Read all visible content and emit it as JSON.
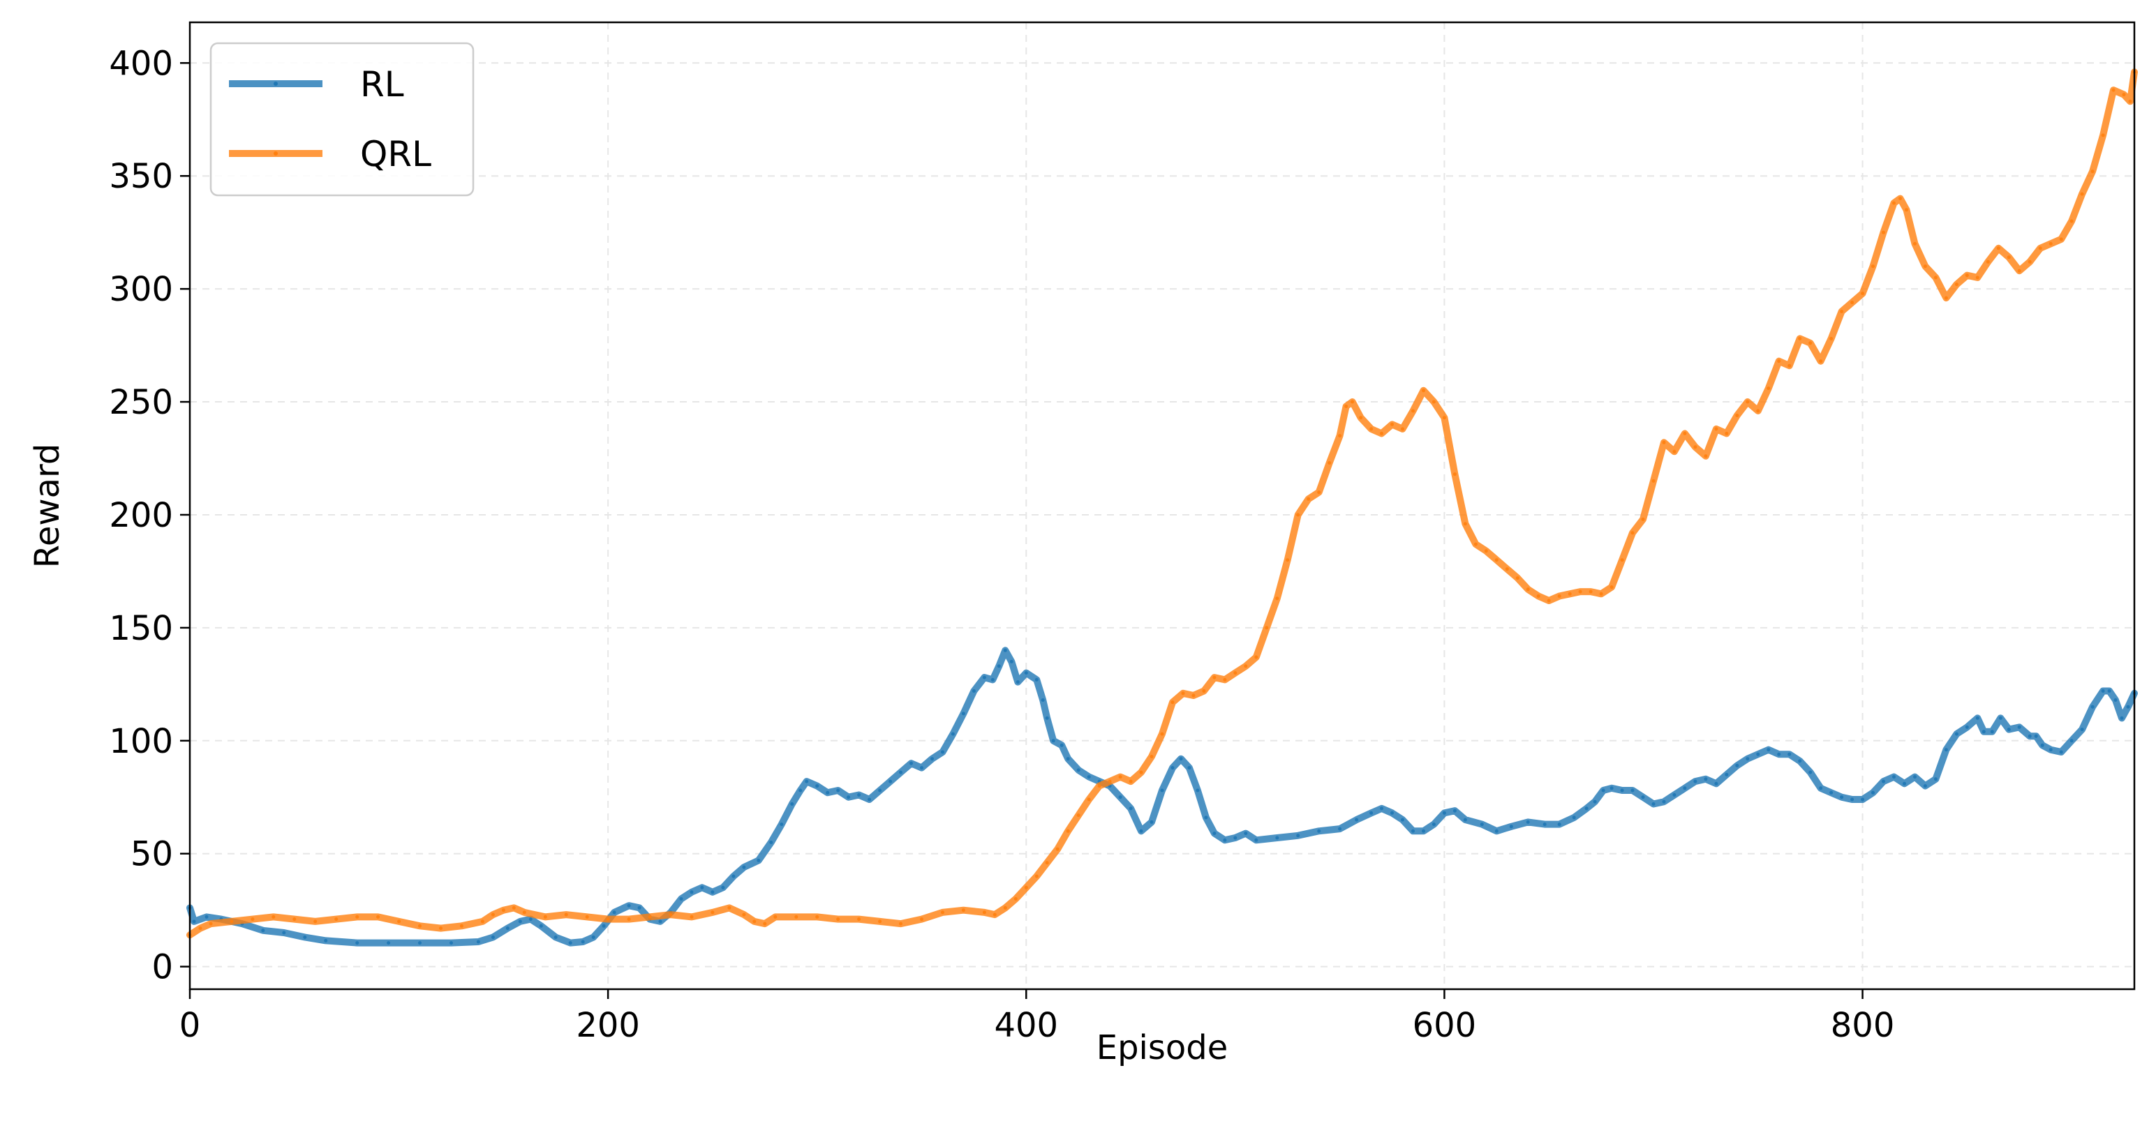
{
  "chart_data": {
    "type": "line",
    "title": "",
    "xlabel": "Episode",
    "ylabel": "Reward",
    "xlim": [
      0,
      930
    ],
    "ylim": [
      -10,
      418
    ],
    "xticks": [
      0,
      200,
      400,
      600,
      800
    ],
    "yticks": [
      0,
      50,
      100,
      150,
      200,
      250,
      300,
      350,
      400
    ],
    "grid": true,
    "legend_position": "top-left",
    "series": [
      {
        "name": "RL",
        "color": "#1f77b4",
        "points": [
          [
            0,
            26
          ],
          [
            2,
            20
          ],
          [
            8,
            22
          ],
          [
            15,
            21
          ],
          [
            25,
            19
          ],
          [
            35,
            16
          ],
          [
            45,
            15
          ],
          [
            55,
            13
          ],
          [
            65,
            11.5
          ],
          [
            80,
            10.5
          ],
          [
            95,
            10.5
          ],
          [
            110,
            10.5
          ],
          [
            125,
            10.5
          ],
          [
            138,
            11
          ],
          [
            145,
            13
          ],
          [
            152,
            17
          ],
          [
            158,
            20
          ],
          [
            163,
            21
          ],
          [
            168,
            18
          ],
          [
            175,
            13
          ],
          [
            182,
            10.5
          ],
          [
            188,
            11
          ],
          [
            193,
            13
          ],
          [
            198,
            18
          ],
          [
            203,
            24
          ],
          [
            210,
            27
          ],
          [
            215,
            26
          ],
          [
            220,
            21
          ],
          [
            225,
            20
          ],
          [
            230,
            24
          ],
          [
            235,
            30
          ],
          [
            240,
            33
          ],
          [
            245,
            35
          ],
          [
            250,
            33
          ],
          [
            255,
            35
          ],
          [
            260,
            40
          ],
          [
            265,
            44
          ],
          [
            272,
            47
          ],
          [
            278,
            55
          ],
          [
            283,
            63
          ],
          [
            288,
            72
          ],
          [
            292,
            78
          ],
          [
            295,
            82
          ],
          [
            300,
            80
          ],
          [
            305,
            77
          ],
          [
            310,
            78
          ],
          [
            315,
            75
          ],
          [
            320,
            76
          ],
          [
            325,
            74
          ],
          [
            330,
            78
          ],
          [
            335,
            82
          ],
          [
            340,
            86
          ],
          [
            345,
            90
          ],
          [
            350,
            88
          ],
          [
            355,
            92
          ],
          [
            360,
            95
          ],
          [
            365,
            103
          ],
          [
            370,
            112
          ],
          [
            375,
            122
          ],
          [
            380,
            128
          ],
          [
            384,
            127
          ],
          [
            387,
            133
          ],
          [
            390,
            140
          ],
          [
            393,
            135
          ],
          [
            396,
            126
          ],
          [
            400,
            130
          ],
          [
            405,
            127
          ],
          [
            408,
            118
          ],
          [
            410,
            110
          ],
          [
            413,
            100
          ],
          [
            417,
            98
          ],
          [
            420,
            92
          ],
          [
            425,
            87
          ],
          [
            430,
            84
          ],
          [
            435,
            82
          ],
          [
            440,
            80
          ],
          [
            445,
            75
          ],
          [
            450,
            70
          ],
          [
            455,
            60
          ],
          [
            460,
            64
          ],
          [
            465,
            78
          ],
          [
            470,
            88
          ],
          [
            474,
            92
          ],
          [
            478,
            88
          ],
          [
            482,
            78
          ],
          [
            486,
            66
          ],
          [
            490,
            59
          ],
          [
            495,
            56
          ],
          [
            500,
            57
          ],
          [
            505,
            59
          ],
          [
            510,
            56
          ],
          [
            520,
            57
          ],
          [
            530,
            58
          ],
          [
            540,
            60
          ],
          [
            550,
            61
          ],
          [
            558,
            65
          ],
          [
            565,
            68
          ],
          [
            570,
            70
          ],
          [
            575,
            68
          ],
          [
            580,
            65
          ],
          [
            585,
            60
          ],
          [
            590,
            60
          ],
          [
            595,
            63
          ],
          [
            600,
            68
          ],
          [
            605,
            69
          ],
          [
            610,
            65
          ],
          [
            618,
            63
          ],
          [
            625,
            60
          ],
          [
            632,
            62
          ],
          [
            640,
            64
          ],
          [
            648,
            63
          ],
          [
            655,
            63
          ],
          [
            662,
            66
          ],
          [
            668,
            70
          ],
          [
            672,
            73
          ],
          [
            676,
            78
          ],
          [
            680,
            79
          ],
          [
            685,
            78
          ],
          [
            690,
            78
          ],
          [
            695,
            75
          ],
          [
            700,
            72
          ],
          [
            705,
            73
          ],
          [
            710,
            76
          ],
          [
            715,
            79
          ],
          [
            720,
            82
          ],
          [
            725,
            83
          ],
          [
            730,
            81
          ],
          [
            735,
            85
          ],
          [
            740,
            89
          ],
          [
            745,
            92
          ],
          [
            750,
            94
          ],
          [
            755,
            96
          ],
          [
            760,
            94
          ],
          [
            765,
            94
          ],
          [
            770,
            91
          ],
          [
            775,
            86
          ],
          [
            780,
            79
          ],
          [
            785,
            77
          ],
          [
            790,
            75
          ],
          [
            795,
            74
          ],
          [
            800,
            74
          ],
          [
            805,
            77
          ],
          [
            810,
            82
          ],
          [
            815,
            84
          ],
          [
            820,
            81
          ],
          [
            825,
            84
          ],
          [
            830,
            80
          ],
          [
            835,
            83
          ],
          [
            840,
            96
          ],
          [
            845,
            103
          ],
          [
            850,
            106
          ],
          [
            855,
            110
          ],
          [
            858,
            104
          ],
          [
            862,
            104
          ],
          [
            866,
            110
          ],
          [
            870,
            105
          ],
          [
            875,
            106
          ],
          [
            880,
            102
          ],
          [
            883,
            102
          ],
          [
            886,
            98
          ],
          [
            890,
            96
          ],
          [
            895,
            95
          ],
          [
            900,
            100
          ],
          [
            905,
            105
          ],
          [
            910,
            115
          ],
          [
            915,
            122
          ],
          [
            918,
            122
          ],
          [
            921,
            118
          ],
          [
            924,
            110
          ],
          [
            927,
            115
          ],
          [
            930,
            121
          ]
        ]
      },
      {
        "name": "QRL",
        "color": "#ff7f0e",
        "points": [
          [
            0,
            14
          ],
          [
            5,
            17
          ],
          [
            10,
            19
          ],
          [
            20,
            20
          ],
          [
            30,
            21
          ],
          [
            40,
            22
          ],
          [
            50,
            21
          ],
          [
            60,
            20
          ],
          [
            70,
            21
          ],
          [
            80,
            22
          ],
          [
            90,
            22
          ],
          [
            100,
            20
          ],
          [
            110,
            18
          ],
          [
            120,
            17
          ],
          [
            130,
            18
          ],
          [
            140,
            20
          ],
          [
            145,
            23
          ],
          [
            150,
            25
          ],
          [
            155,
            26
          ],
          [
            160,
            24
          ],
          [
            170,
            22
          ],
          [
            180,
            23
          ],
          [
            190,
            22
          ],
          [
            200,
            21
          ],
          [
            210,
            21
          ],
          [
            220,
            22
          ],
          [
            230,
            23
          ],
          [
            240,
            22
          ],
          [
            250,
            24
          ],
          [
            258,
            26
          ],
          [
            265,
            23
          ],
          [
            270,
            20
          ],
          [
            275,
            19
          ],
          [
            280,
            22
          ],
          [
            290,
            22
          ],
          [
            300,
            22
          ],
          [
            310,
            21
          ],
          [
            320,
            21
          ],
          [
            330,
            20
          ],
          [
            340,
            19
          ],
          [
            350,
            21
          ],
          [
            360,
            24
          ],
          [
            370,
            25
          ],
          [
            380,
            24
          ],
          [
            385,
            23
          ],
          [
            390,
            26
          ],
          [
            395,
            30
          ],
          [
            400,
            35
          ],
          [
            405,
            40
          ],
          [
            410,
            46
          ],
          [
            415,
            52
          ],
          [
            420,
            60
          ],
          [
            425,
            67
          ],
          [
            430,
            74
          ],
          [
            435,
            80
          ],
          [
            440,
            82
          ],
          [
            445,
            84
          ],
          [
            450,
            82
          ],
          [
            455,
            86
          ],
          [
            460,
            93
          ],
          [
            465,
            103
          ],
          [
            470,
            117
          ],
          [
            475,
            121
          ],
          [
            480,
            120
          ],
          [
            485,
            122
          ],
          [
            490,
            128
          ],
          [
            495,
            127
          ],
          [
            500,
            130
          ],
          [
            505,
            133
          ],
          [
            510,
            137
          ],
          [
            515,
            150
          ],
          [
            520,
            163
          ],
          [
            525,
            180
          ],
          [
            530,
            200
          ],
          [
            535,
            207
          ],
          [
            540,
            210
          ],
          [
            545,
            223
          ],
          [
            550,
            235
          ],
          [
            553,
            248
          ],
          [
            556,
            250
          ],
          [
            560,
            243
          ],
          [
            565,
            238
          ],
          [
            570,
            236
          ],
          [
            575,
            240
          ],
          [
            580,
            238
          ],
          [
            585,
            246
          ],
          [
            590,
            255
          ],
          [
            595,
            250
          ],
          [
            600,
            243
          ],
          [
            605,
            218
          ],
          [
            610,
            196
          ],
          [
            615,
            187
          ],
          [
            620,
            184
          ],
          [
            625,
            180
          ],
          [
            630,
            176
          ],
          [
            635,
            172
          ],
          [
            640,
            167
          ],
          [
            645,
            164
          ],
          [
            650,
            162
          ],
          [
            655,
            164
          ],
          [
            660,
            165
          ],
          [
            665,
            166
          ],
          [
            670,
            166
          ],
          [
            675,
            165
          ],
          [
            680,
            168
          ],
          [
            685,
            180
          ],
          [
            690,
            192
          ],
          [
            695,
            198
          ],
          [
            700,
            215
          ],
          [
            705,
            232
          ],
          [
            710,
            228
          ],
          [
            715,
            236
          ],
          [
            720,
            230
          ],
          [
            725,
            226
          ],
          [
            730,
            238
          ],
          [
            735,
            236
          ],
          [
            740,
            244
          ],
          [
            745,
            250
          ],
          [
            750,
            246
          ],
          [
            755,
            256
          ],
          [
            760,
            268
          ],
          [
            765,
            266
          ],
          [
            770,
            278
          ],
          [
            775,
            276
          ],
          [
            780,
            268
          ],
          [
            785,
            278
          ],
          [
            790,
            290
          ],
          [
            795,
            294
          ],
          [
            800,
            298
          ],
          [
            805,
            310
          ],
          [
            810,
            325
          ],
          [
            815,
            338
          ],
          [
            818,
            340
          ],
          [
            821,
            335
          ],
          [
            825,
            320
          ],
          [
            830,
            310
          ],
          [
            835,
            305
          ],
          [
            840,
            296
          ],
          [
            845,
            302
          ],
          [
            850,
            306
          ],
          [
            855,
            305
          ],
          [
            860,
            312
          ],
          [
            865,
            318
          ],
          [
            870,
            314
          ],
          [
            875,
            308
          ],
          [
            880,
            312
          ],
          [
            885,
            318
          ],
          [
            890,
            320
          ],
          [
            895,
            322
          ],
          [
            900,
            330
          ],
          [
            905,
            342
          ],
          [
            910,
            352
          ],
          [
            915,
            368
          ],
          [
            920,
            388
          ],
          [
            925,
            386
          ],
          [
            928,
            383
          ],
          [
            930,
            396
          ]
        ]
      }
    ]
  }
}
